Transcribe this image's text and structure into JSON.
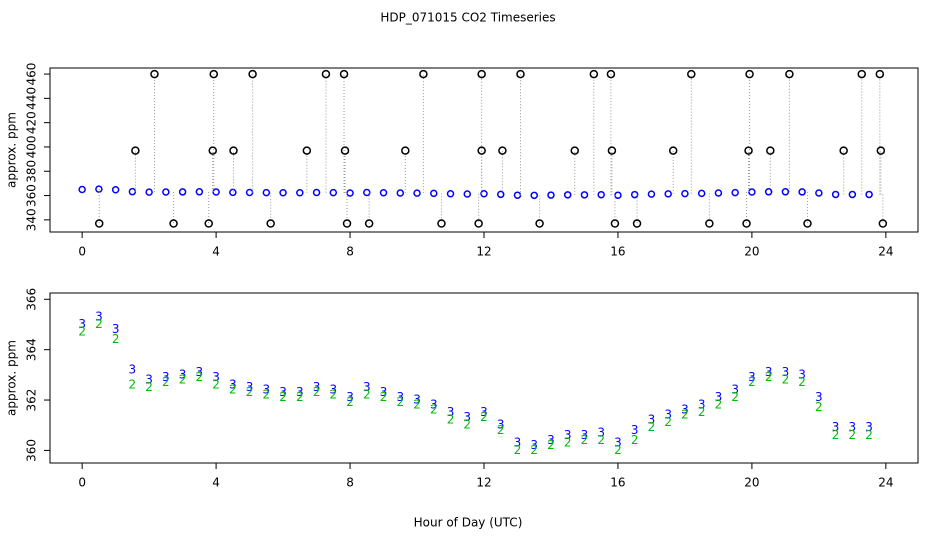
{
  "chart_data": [
    {
      "type": "scatter",
      "title": "HDP_071015  CO2 Timeseries",
      "y_label": "approx. ppm",
      "xlim": [
        -0.96,
        24.96
      ],
      "xticks": [
        0,
        4,
        8,
        12,
        16,
        20,
        24
      ],
      "ylim": [
        330,
        465
      ],
      "yticks": [
        340,
        360,
        380,
        400,
        420,
        440,
        460
      ],
      "series": [
        {
          "color": "#0000ff",
          "x": [
            0,
            0.5,
            1,
            1.5,
            2,
            2.5,
            3,
            3.5,
            4,
            4.5,
            5,
            5.5,
            6,
            6.5,
            7,
            7.5,
            8,
            8.5,
            9,
            9.5,
            10,
            10.5,
            11,
            11.5,
            12,
            12.5,
            13,
            13.5,
            14,
            14.5,
            15,
            15.5,
            16,
            16.5,
            17,
            17.5,
            18,
            18.5,
            19,
            19.5,
            20,
            20.5,
            21,
            21.5,
            22,
            22.5,
            23,
            23.5
          ],
          "values": [
            365.0,
            365.3,
            364.8,
            363.2,
            362.8,
            362.9,
            363.0,
            363.1,
            362.9,
            362.6,
            362.5,
            362.4,
            362.3,
            362.3,
            362.5,
            362.4,
            362.1,
            362.5,
            362.3,
            362.1,
            362.0,
            361.8,
            361.5,
            361.3,
            361.5,
            361.0,
            360.3,
            360.2,
            360.4,
            360.6,
            360.6,
            360.7,
            360.3,
            360.8,
            361.2,
            361.4,
            361.6,
            361.8,
            362.1,
            362.4,
            362.9,
            363.1,
            363.1,
            363.0,
            362.1,
            360.9,
            360.9,
            360.9
          ]
        },
        {
          "color": "#000000",
          "x": [
            0.51,
            1.59,
            2.16,
            2.73,
            3.78,
            3.9,
            3.93,
            4.52,
            5.09,
            5.63,
            6.71,
            7.28,
            7.82,
            7.85,
            7.91,
            8.57,
            9.65,
            10.19,
            10.73,
            11.84,
            11.93,
            11.93,
            12.55,
            13.09,
            13.66,
            14.71,
            15.28,
            15.79,
            15.82,
            15.91,
            16.57,
            17.65,
            18.19,
            18.73,
            19.84,
            19.9,
            19.93,
            20.55,
            21.12,
            21.66,
            22.74,
            23.28,
            23.82,
            23.85,
            23.91
          ],
          "values": [
            337,
            397,
            460,
            337,
            337,
            397,
            460,
            397,
            460,
            337,
            397,
            460,
            460,
            397,
            337,
            337,
            397,
            460,
            337,
            337,
            460,
            397,
            397,
            460,
            337,
            397,
            460,
            460,
            397,
            337,
            337,
            397,
            460,
            337,
            337,
            397,
            460,
            397,
            460,
            337,
            397,
            460,
            460,
            397,
            337
          ]
        }
      ]
    },
    {
      "type": "scatter",
      "y_label": "approx. ppm",
      "x_label": "Hour of Day (UTC)",
      "xlim": [
        -0.96,
        24.96
      ],
      "xticks": [
        0,
        4,
        8,
        12,
        16,
        20,
        24
      ],
      "ylim": [
        359.5,
        366.25
      ],
      "yticks": [
        360,
        362,
        364,
        366
      ],
      "series": [
        {
          "marker": "3",
          "color": "#0000ff",
          "x": [
            0,
            0.5,
            1,
            1.5,
            2,
            2.5,
            3,
            3.5,
            4,
            4.5,
            5,
            5.5,
            6,
            6.5,
            7,
            7.5,
            8,
            8.5,
            9,
            9.5,
            10,
            10.5,
            11,
            11.5,
            12,
            12.5,
            13,
            13.5,
            14,
            14.5,
            15,
            15.5,
            16,
            16.5,
            17,
            17.5,
            18,
            18.5,
            19,
            19.5,
            20,
            20.5,
            21,
            21.5,
            22,
            22.5,
            23,
            23.5
          ],
          "values": [
            365.0,
            365.3,
            364.8,
            363.2,
            362.8,
            362.9,
            363.0,
            363.1,
            362.9,
            362.6,
            362.5,
            362.4,
            362.3,
            362.3,
            362.5,
            362.4,
            362.1,
            362.5,
            362.3,
            362.1,
            362.0,
            361.8,
            361.5,
            361.3,
            361.5,
            361.0,
            360.3,
            360.2,
            360.4,
            360.6,
            360.6,
            360.7,
            360.3,
            360.8,
            361.2,
            361.4,
            361.6,
            361.8,
            362.1,
            362.4,
            362.9,
            363.1,
            363.1,
            363.0,
            362.1,
            360.9,
            360.9,
            360.9
          ]
        },
        {
          "marker": "2",
          "color": "#00bb00",
          "x": [
            0,
            0.5,
            1,
            1.5,
            2,
            2.5,
            3,
            3.5,
            4,
            4.5,
            5,
            5.5,
            6,
            6.5,
            7,
            7.5,
            8,
            8.5,
            9,
            9.5,
            10,
            10.5,
            11,
            11.5,
            12,
            12.5,
            13,
            13.5,
            14,
            14.5,
            15,
            15.5,
            16,
            16.5,
            17,
            17.5,
            18,
            18.5,
            19,
            19.5,
            20,
            20.5,
            21,
            21.5,
            22,
            22.5,
            23,
            23.5
          ],
          "values": [
            364.7,
            365.0,
            364.4,
            362.6,
            362.5,
            362.7,
            362.8,
            362.9,
            362.6,
            362.4,
            362.3,
            362.2,
            362.1,
            362.1,
            362.3,
            362.2,
            361.9,
            362.2,
            362.1,
            361.9,
            361.8,
            361.6,
            361.2,
            361.0,
            361.3,
            360.8,
            360.0,
            360.0,
            360.2,
            360.3,
            360.4,
            360.4,
            360.0,
            360.4,
            360.9,
            361.1,
            361.4,
            361.5,
            361.8,
            362.1,
            362.7,
            362.9,
            362.8,
            362.7,
            361.7,
            360.6,
            360.6,
            360.6
          ]
        }
      ]
    }
  ]
}
